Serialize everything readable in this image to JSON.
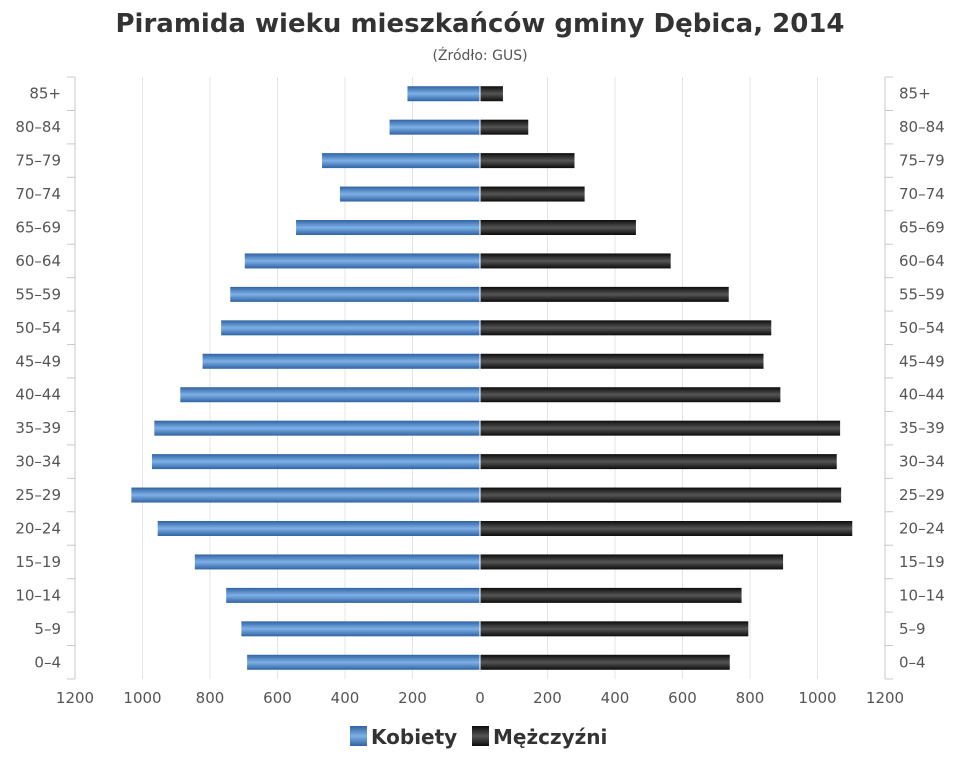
{
  "chart_data": {
    "type": "bar",
    "orientation": "horizontal-pyramid",
    "title": "Piramida wieku mieszkańców gminy Dębica, 2014",
    "subtitle": "(Źródło: GUS)",
    "categories": [
      "85+",
      "80–84",
      "75–79",
      "70–74",
      "65–69",
      "60–64",
      "55–59",
      "50–54",
      "45–49",
      "40–44",
      "35–39",
      "30–34",
      "25–29",
      "20–24",
      "15–19",
      "10–14",
      "5–9",
      "0–4"
    ],
    "series": [
      {
        "name": "Kobiety",
        "color": "#3b76b8",
        "values": [
          215,
          268,
          468,
          415,
          545,
          697,
          740,
          767,
          822,
          888,
          965,
          972,
          1033,
          955,
          845,
          752,
          707,
          690
        ]
      },
      {
        "name": "Mężczyźni",
        "color": "#151515",
        "values": [
          68,
          143,
          280,
          310,
          462,
          565,
          737,
          863,
          840,
          890,
          1067,
          1057,
          1070,
          1103,
          898,
          775,
          795,
          740
        ]
      }
    ],
    "xlim": [
      -1200,
      1200
    ],
    "xticks": [
      "1200",
      "1000",
      "800",
      "600",
      "400",
      "200",
      "0",
      "200",
      "400",
      "600",
      "800",
      "1000",
      "1200"
    ],
    "grid": true,
    "legend_position": "bottom-center"
  }
}
